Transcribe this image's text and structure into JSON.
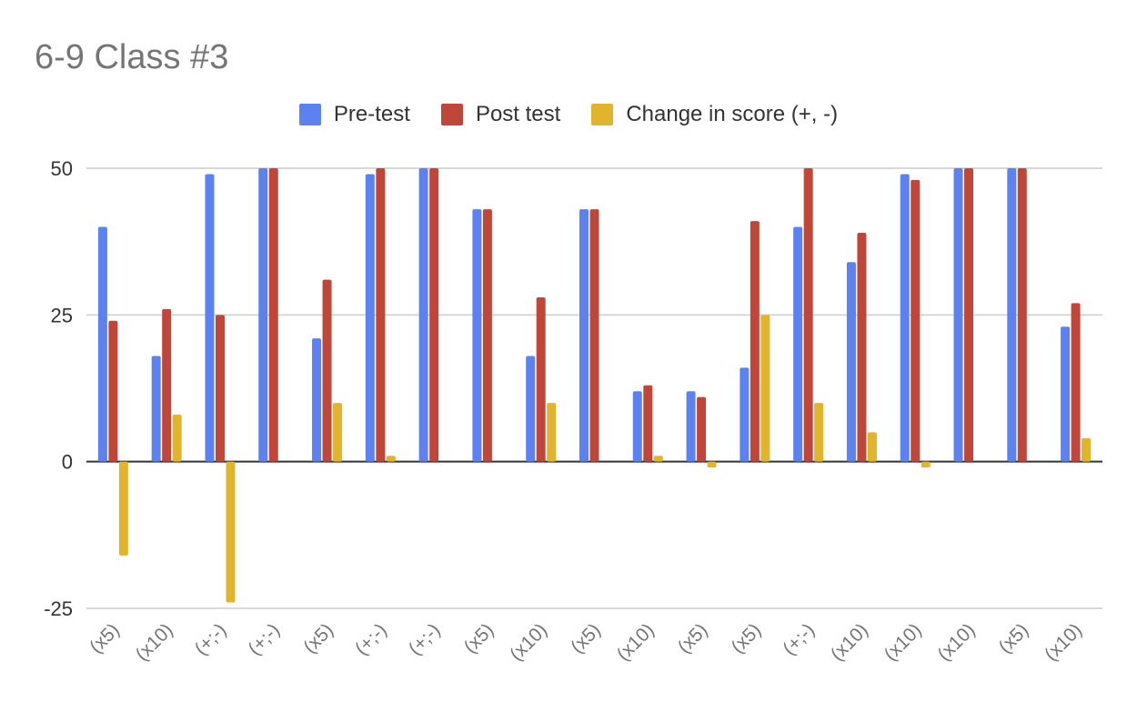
{
  "chart_data": {
    "type": "bar",
    "title": "6-9 Class #3",
    "xlabel": "",
    "ylabel": "",
    "ylim": [
      -25,
      50
    ],
    "yticks": [
      50,
      25,
      0,
      -25
    ],
    "grid": true,
    "legend_position": "top",
    "categories": [
      "(x5)",
      "(x10)",
      "(+;-)",
      "(+;-)",
      "(x5)",
      "(+;-)",
      "(+;-)",
      "(x5)",
      "(x10)",
      "(x5)",
      "(x10)",
      "(x5)",
      "(x5)",
      "(+;-)",
      "(x10)",
      "(x10)",
      "(x10)",
      "(x5)",
      "(x10)"
    ],
    "series": [
      {
        "name": "Pre-test",
        "color": "#5b82f0",
        "values": [
          40,
          18,
          49,
          50,
          21,
          49,
          50,
          43,
          18,
          43,
          12,
          12,
          16,
          40,
          34,
          49,
          50,
          50,
          23
        ]
      },
      {
        "name": "Post test",
        "color": "#c0463a",
        "values": [
          24,
          26,
          25,
          50,
          31,
          50,
          50,
          43,
          28,
          43,
          13,
          11,
          41,
          50,
          39,
          48,
          50,
          50,
          27
        ]
      },
      {
        "name": "Change in score (+, -)",
        "color": "#e1b52b",
        "values": [
          -16,
          8,
          -24,
          0,
          10,
          1,
          0,
          0,
          10,
          0,
          1,
          -1,
          25,
          10,
          5,
          -1,
          0,
          0,
          4
        ]
      }
    ]
  }
}
